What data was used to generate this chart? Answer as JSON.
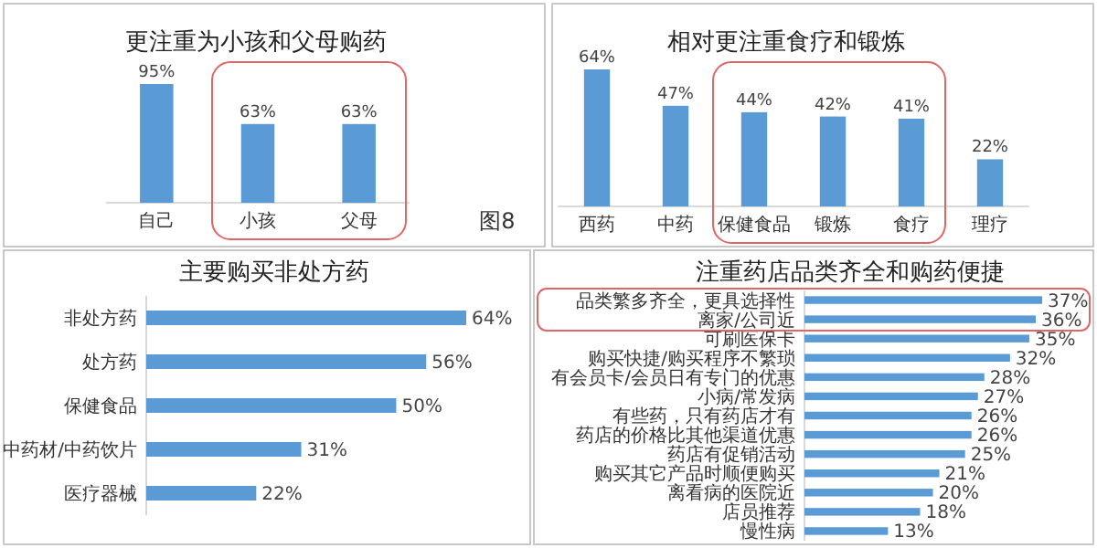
{
  "chart_data": [
    {
      "type": "bar",
      "title": "更注重为小孩和父母购药",
      "categories": [
        "自己",
        "小孩",
        "父母"
      ],
      "values": [
        95,
        63,
        63
      ],
      "value_labels": [
        "95%",
        "63%",
        "63%"
      ],
      "color": "#5b9bd5",
      "tick_labels": "x",
      "annotations": [
        "图8"
      ]
    },
    {
      "type": "bar",
      "title": "相对更注重食疗和锻炼",
      "categories": [
        "西药",
        "中药",
        "保健食品",
        "锻炼",
        "食疗",
        "理疗"
      ],
      "values": [
        64,
        47,
        44,
        42,
        41,
        22
      ],
      "value_labels": [
        "64%",
        "47%",
        "44%",
        "42%",
        "41%",
        "22%"
      ],
      "color": "#5b9bd5",
      "tick_labels": "x"
    },
    {
      "type": "bar",
      "orientation": "horizontal",
      "title": "主要购买非处方药",
      "categories": [
        "非处方药",
        "处方药",
        "保健食品",
        "中药材/中药饮片",
        "医疗器械"
      ],
      "values": [
        64,
        56,
        50,
        31,
        22
      ],
      "value_labels": [
        "64%",
        "56%",
        "50%",
        "31%",
        "22%"
      ],
      "color": "#5b9bd5",
      "tick_labels": "y"
    },
    {
      "type": "bar",
      "orientation": "horizontal",
      "title": "注重药店品类齐全和购药便捷",
      "categories": [
        "品类繁多齐全，更具选择性",
        "离家/公司近",
        "可刷医保卡",
        "购买快捷/购买程序不繁琐",
        "有会员卡/会员日有专门的优惠",
        "小病/常发病",
        "有些药，只有药店才有",
        "药店的价格比其他渠道优惠",
        "药店有促销活动",
        "购买其它产品时顺便购买",
        "离看病的医院近",
        "店员推荐",
        "慢性病"
      ],
      "values": [
        37,
        36,
        35,
        32,
        28,
        27,
        26,
        26,
        25,
        21,
        20,
        18,
        13
      ],
      "value_labels": [
        "37%",
        "36%",
        "35%",
        "32%",
        "28%",
        "27%",
        "26%",
        "26%",
        "25%",
        "21%",
        "20%",
        "18%",
        "13%"
      ],
      "color": "#5b9bd5",
      "tick_labels": "y"
    }
  ]
}
